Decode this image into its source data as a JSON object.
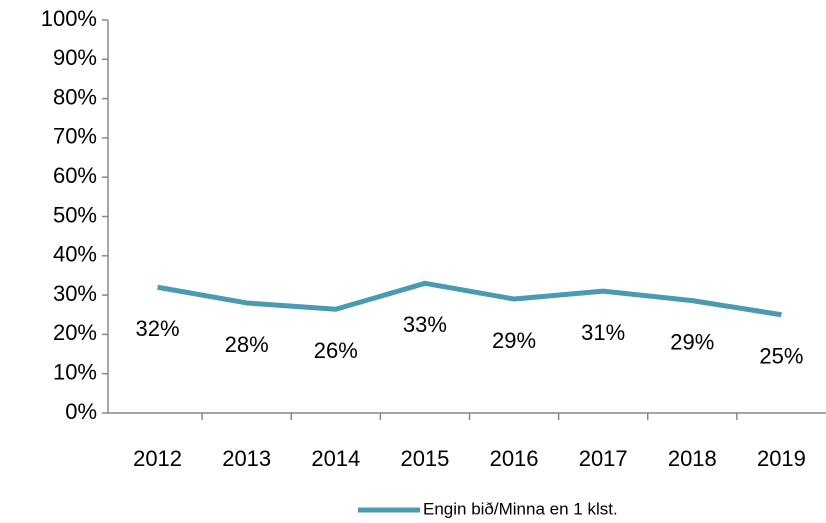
{
  "chart_data": {
    "type": "line",
    "categories": [
      "2012",
      "2013",
      "2014",
      "2015",
      "2016",
      "2017",
      "2018",
      "2019"
    ],
    "series": [
      {
        "name": "Engin bið/Minna en 1 klst.",
        "color": "#4a9bb2",
        "values": [
          32,
          28,
          26.4,
          33,
          29,
          31,
          28.6,
          25
        ],
        "value_labels": [
          "32%",
          "28%",
          "26%",
          "33%",
          "29%",
          "31%",
          "29%",
          "25%"
        ]
      }
    ],
    "ylim": [
      0,
      100
    ],
    "yticks": [
      {
        "value": 0,
        "label": "0%"
      },
      {
        "value": 10,
        "label": "10%"
      },
      {
        "value": 20,
        "label": "20%"
      },
      {
        "value": 30,
        "label": "30%"
      },
      {
        "value": 40,
        "label": "40%"
      },
      {
        "value": 50,
        "label": "50%"
      },
      {
        "value": 60,
        "label": "60%"
      },
      {
        "value": 70,
        "label": "70%"
      },
      {
        "value": 80,
        "label": "80%"
      },
      {
        "value": 90,
        "label": "90%"
      },
      {
        "value": 100,
        "label": "100%"
      }
    ],
    "grid": false,
    "legend": "bottom"
  }
}
